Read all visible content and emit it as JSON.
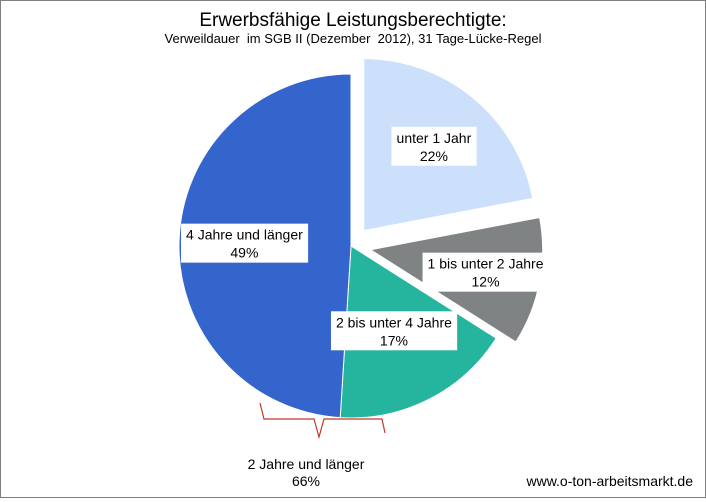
{
  "chart_data": {
    "type": "pie",
    "title": "Erwerbsfähige Leistungsberechtigte:",
    "subtitle": "Verweildauer  im SGB II (Dezember  2012), 31 Tage-Lücke-Regel",
    "slices": [
      {
        "label": "unter 1 Jahr",
        "value": 22,
        "value_label": "22%",
        "color": "#cce0fc",
        "exploded": true
      },
      {
        "label": "1 bis unter 2 Jahre",
        "value": 12,
        "value_label": "12%",
        "color": "#808384",
        "exploded": true
      },
      {
        "label": "2 bis unter 4 Jahre",
        "value": 17,
        "value_label": "17%",
        "color": "#25b49e",
        "exploded": false
      },
      {
        "label": "4 Jahre und länger",
        "value": 49,
        "value_label": "49%",
        "color": "#3465cc",
        "exploded": false
      }
    ],
    "group_annotation": {
      "label": "2 Jahre und länger",
      "value_label": "66%",
      "bracket_color": "#c0392b"
    }
  },
  "source": "www.o-ton-arbeitsmarkt.de"
}
